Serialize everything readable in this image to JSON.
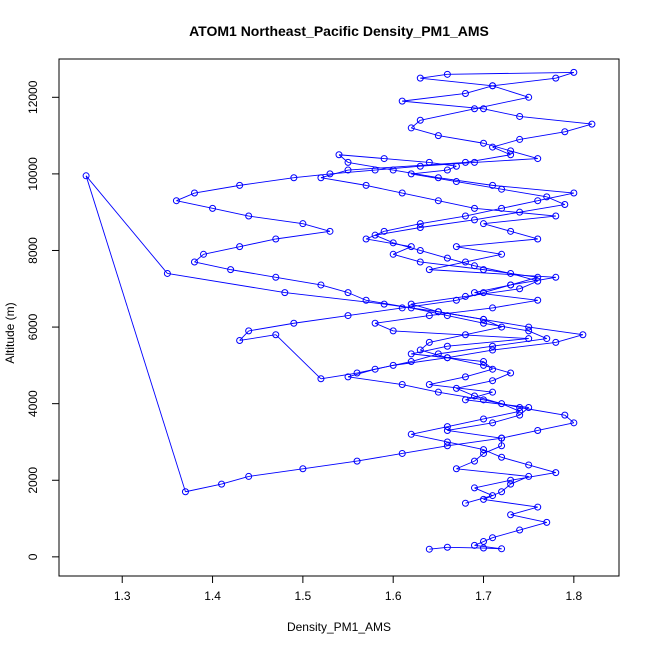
{
  "chart_data": {
    "type": "line",
    "title": "ATOM1 Northeast_Pacific Density_PM1_AMS",
    "xlabel": "Density_PM1_AMS",
    "ylabel": "Altitude (m)",
    "xlim": [
      1.23,
      1.85
    ],
    "ylim": [
      -500,
      13000
    ],
    "x_ticks": [
      1.3,
      1.4,
      1.5,
      1.6,
      1.7,
      1.8
    ],
    "x_tick_labels": [
      "1.3",
      "1.4",
      "1.5",
      "1.6",
      "1.7",
      "1.8"
    ],
    "y_ticks": [
      0,
      2000,
      4000,
      6000,
      8000,
      10000,
      12000
    ],
    "y_tick_labels": [
      "0",
      "2000",
      "4000",
      "6000",
      "8000",
      "10000",
      "12000"
    ],
    "grid": false,
    "legend": "none",
    "markers": "open-circle",
    "colors": {
      "series": "#0000ff",
      "axes": "#000000"
    },
    "series": [
      {
        "x": [
          1.64,
          1.66,
          1.7,
          1.72,
          1.69,
          1.7,
          1.71,
          1.74,
          1.77,
          1.73,
          1.76,
          1.7,
          1.72,
          1.73,
          1.75,
          1.67,
          1.69,
          1.7,
          1.72,
          1.72,
          1.66,
          1.71,
          1.74,
          1.75,
          1.68,
          1.71,
          1.64,
          1.68,
          1.71,
          1.7,
          1.62,
          1.66,
          1.75,
          1.6,
          1.58,
          1.64,
          1.71,
          1.76,
          1.69,
          1.73,
          1.78,
          1.64,
          1.68,
          1.72,
          1.67,
          1.76,
          1.73,
          1.7,
          1.78,
          1.69,
          1.65,
          1.61,
          1.57,
          1.52,
          1.55,
          1.68,
          1.73,
          1.71,
          1.74,
          1.79,
          1.82,
          1.74,
          1.7,
          1.61,
          1.68,
          1.71,
          1.78,
          1.8,
          1.66,
          1.63,
          1.71,
          1.75,
          1.69,
          1.63,
          1.62,
          1.65,
          1.7,
          1.73,
          1.76,
          1.69,
          1.63,
          1.58,
          1.53,
          1.49,
          1.43,
          1.38,
          1.36,
          1.4,
          1.44,
          1.5,
          1.53,
          1.47,
          1.43,
          1.39,
          1.38,
          1.42,
          1.47,
          1.52,
          1.55,
          1.57,
          1.62,
          1.66,
          1.7,
          1.75,
          1.77,
          1.71,
          1.65,
          1.62,
          1.58,
          1.55,
          1.61,
          1.65,
          1.7,
          1.74,
          1.79,
          1.8,
          1.76,
          1.72,
          1.66,
          1.61,
          1.56,
          1.5,
          1.44,
          1.41,
          1.37,
          1.26,
          1.35,
          1.48,
          1.59,
          1.65,
          1.7,
          1.75,
          1.81,
          1.78,
          1.71,
          1.66,
          1.6,
          1.56,
          1.52,
          1.47,
          1.43,
          1.44,
          1.49,
          1.55,
          1.61,
          1.67,
          1.7,
          1.73,
          1.76,
          1.7,
          1.63,
          1.6,
          1.62,
          1.57,
          1.59,
          1.63,
          1.68,
          1.72,
          1.76,
          1.8,
          1.71,
          1.65,
          1.6,
          1.55,
          1.54,
          1.59,
          1.64,
          1.67,
          1.66,
          1.62,
          1.67,
          1.72,
          1.77,
          1.79,
          1.74,
          1.69,
          1.63,
          1.58,
          1.6,
          1.63,
          1.66,
          1.69,
          1.73,
          1.76,
          1.74,
          1.68,
          1.62,
          1.65,
          1.7,
          1.72,
          1.68,
          1.64,
          1.63,
          1.66,
          1.7,
          1.73,
          1.71,
          1.67,
          1.69,
          1.72,
          1.74,
          1.7,
          1.66,
          1.62,
          1.66,
          1.7,
          1.72,
          1.75,
          1.78,
          1.73,
          1.69,
          1.71,
          1.68
        ],
        "y": [
          200,
          250,
          230,
          210,
          300,
          400,
          500,
          700,
          900,
          1100,
          1300,
          1500,
          1700,
          1900,
          2100,
          2300,
          2500,
          2700,
          2900,
          3100,
          3300,
          3500,
          3700,
          3900,
          4100,
          4300,
          4500,
          4700,
          4900,
          5100,
          5300,
          5500,
          5700,
          5900,
          6100,
          6300,
          6500,
          6700,
          6900,
          7100,
          7300,
          7500,
          7700,
          7900,
          8100,
          8300,
          8500,
          8700,
          8900,
          9100,
          9300,
          9500,
          9700,
          9900,
          10100,
          10300,
          10500,
          10700,
          10900,
          11100,
          11300,
          11500,
          11700,
          11900,
          12100,
          12300,
          12500,
          12650,
          12600,
          12500,
          12300,
          12000,
          11700,
          11400,
          11200,
          11000,
          10800,
          10600,
          10400,
          10300,
          10200,
          10100,
          10000,
          9900,
          9700,
          9500,
          9300,
          9100,
          8900,
          8700,
          8500,
          8300,
          8100,
          7900,
          7700,
          7500,
          7300,
          7100,
          6900,
          6700,
          6500,
          6300,
          6100,
          5900,
          5700,
          5500,
          5300,
          5100,
          4900,
          4700,
          4500,
          4300,
          4100,
          3900,
          3700,
          3500,
          3300,
          3100,
          2900,
          2700,
          2500,
          2300,
          2100,
          1900,
          1700,
          9950,
          7400,
          6900,
          6600,
          6400,
          6200,
          6000,
          5800,
          5600,
          5400,
          5200,
          5000,
          4800,
          4650,
          5800,
          5650,
          5900,
          6100,
          6300,
          6500,
          6700,
          6900,
          7100,
          7300,
          7500,
          7700,
          7900,
          8100,
          8300,
          8500,
          8700,
          8900,
          9100,
          9300,
          9500,
          9700,
          9900,
          10100,
          10300,
          10500,
          10400,
          10300,
          10200,
          10100,
          10000,
          9800,
          9600,
          9400,
          9200,
          9000,
          8800,
          8600,
          8400,
          8200,
          8000,
          7800,
          7600,
          7400,
          7200,
          7000,
          6800,
          6600,
          6400,
          6200,
          6000,
          5800,
          5600,
          5400,
          5200,
          5000,
          4800,
          4600,
          4400,
          4200,
          4000,
          3800,
          3600,
          3400,
          3200,
          3000,
          2800,
          2600,
          2400,
          2200,
          2000,
          1800,
          1600,
          1400
        ]
      }
    ]
  }
}
